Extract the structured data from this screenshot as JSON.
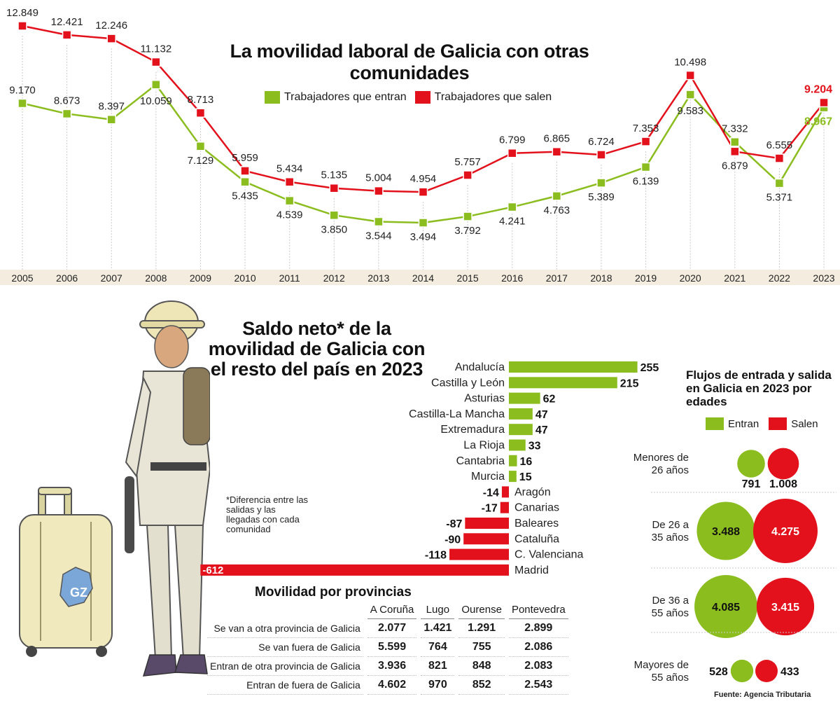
{
  "colors": {
    "green": "#8bbd1f",
    "red": "#e3111b",
    "axis_band": "#f3ecdf"
  },
  "line_title": "La movilidad laboral de Galicia con otras comunidades",
  "legend": {
    "entran": "Trabajadores que entran",
    "salen": "Trabajadores que salen"
  },
  "bar_title": "Saldo neto* de la movilidad de Galicia con el resto del país en 2023",
  "footnote": "*Diferencia entre las salidas y las llegadas con cada comunidad",
  "flows": {
    "title": "Flujos de entrada y salida  en Galicia en 2023 por edades",
    "legend_in": "Entran",
    "legend_out": "Salen"
  },
  "provinces": {
    "title": "Movilidad por provincias",
    "columns": [
      "A Coruña",
      "Lugo",
      "Ourense",
      "Pontevedra"
    ],
    "rows": [
      {
        "label": "Se van a otra provincia de Galicia",
        "values": [
          "2.077",
          "1.421",
          "1.291",
          "2.899"
        ]
      },
      {
        "label": "Se van fuera de Galicia",
        "values": [
          "5.599",
          "764",
          "755",
          "2.086"
        ]
      },
      {
        "label": "Entran de otra provincia de Galicia",
        "values": [
          "3.936",
          "821",
          "848",
          "2.083"
        ]
      },
      {
        "label": "Entran de fuera de Galicia",
        "values": [
          "4.602",
          "970",
          "852",
          "2.543"
        ]
      }
    ]
  },
  "source": "Fuente: Agencia Tributaria",
  "illustration": {
    "logo_text": "GZ"
  },
  "chart_data": [
    {
      "type": "line",
      "title": "La movilidad laboral de Galicia con otras comunidades",
      "x": [
        "2005",
        "2006",
        "2007",
        "2008",
        "2009",
        "2010",
        "2011",
        "2012",
        "2013",
        "2014",
        "2015",
        "2016",
        "2017",
        "2018",
        "2019",
        "2020",
        "2021",
        "2022",
        "2023"
      ],
      "series": [
        {
          "name": "Trabajadores que entran",
          "values": [
            9170,
            8673,
            8397,
            10059,
            7129,
            5435,
            4539,
            3850,
            3544,
            3494,
            3792,
            4241,
            4763,
            5389,
            6139,
            9583,
            7332,
            5371,
            8967
          ],
          "labels": [
            "9.170",
            "8.673",
            "8.397",
            "10.059",
            "7.129",
            "5.435",
            "4.539",
            "3.850",
            "3.544",
            "3.494",
            "3.792",
            "4.241",
            "4.763",
            "5.389",
            "6.139",
            "9.583",
            "7.332",
            "5.371",
            "8.967"
          ]
        },
        {
          "name": "Trabajadores que salen",
          "values": [
            12849,
            12421,
            12246,
            11132,
            8713,
            5959,
            5434,
            5135,
            5004,
            4954,
            5757,
            6799,
            6865,
            6724,
            7353,
            10498,
            6879,
            6555,
            9204
          ],
          "labels": [
            "12.849",
            "12.421",
            "12.246",
            "11.132",
            "8.713",
            "5.959",
            "5.434",
            "5.135",
            "5.004",
            "4.954",
            "5.757",
            "6.799",
            "6.865",
            "6.724",
            "7.353",
            "10.498",
            "6.879",
            "6.555",
            "9.204"
          ]
        }
      ]
    },
    {
      "type": "bar",
      "title": "Saldo neto* de la movilidad de Galicia con el resto del país en 2023",
      "categories": [
        "Andalucía",
        "Castilla y León",
        "Asturias",
        "Castilla-La Mancha",
        "Extremadura",
        "La Rioja",
        "Cantabria",
        "Murcia",
        "Aragón",
        "Canarias",
        "Baleares",
        "Cataluña",
        "C. Valenciana",
        "Madrid"
      ],
      "values": [
        255,
        215,
        62,
        47,
        47,
        33,
        16,
        15,
        -14,
        -17,
        -87,
        -90,
        -118,
        -612
      ]
    },
    {
      "type": "bubble",
      "title": "Flujos de entrada y salida  en Galicia en 2023 por edades",
      "categories": [
        "Menores de 26 años",
        "De 26 a 35 años",
        "De 36 a 55 años",
        "Mayores de 55 años"
      ],
      "series": [
        {
          "name": "Entran",
          "values": [
            791,
            3488,
            4085,
            528
          ],
          "labels": [
            "791",
            "3.488",
            "4.085",
            "528"
          ]
        },
        {
          "name": "Salen",
          "values": [
            1008,
            4275,
            3415,
            433
          ],
          "labels": [
            "1.008",
            "4.275",
            "3.415",
            "433"
          ]
        }
      ]
    }
  ]
}
